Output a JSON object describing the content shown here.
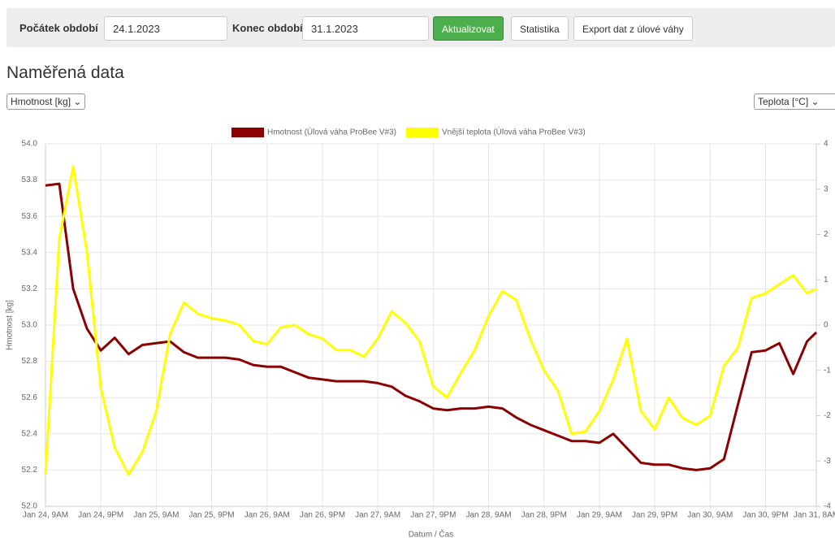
{
  "toolbar": {
    "start_label": "Počátek období",
    "start_value": "24.1.2023",
    "end_label": "Konec období",
    "end_value": "31.1.2023",
    "buttons": [
      "Aktualizovat",
      "Statistika",
      "Export dat z úlové váhy"
    ]
  },
  "heading": "Naměřená data",
  "left_select": "Hmotnost [kg]",
  "right_select": "Teplota [°C]",
  "chart_data": {
    "type": "line",
    "x_label": "Datum / Čas",
    "y_label": "Hmotnost [kg]",
    "x": [
      "Jan 24, 9AM",
      "Jan 24, 12PM",
      "Jan 24, 3PM",
      "Jan 24, 6PM",
      "Jan 24, 9PM",
      "Jan 25, 12AM",
      "Jan 25, 3AM",
      "Jan 25, 6AM",
      "Jan 25, 9AM",
      "Jan 25, 12PM",
      "Jan 25, 3PM",
      "Jan 25, 6PM",
      "Jan 25, 9PM",
      "Jan 26, 12AM",
      "Jan 26, 3AM",
      "Jan 26, 6AM",
      "Jan 26, 9AM",
      "Jan 26, 12PM",
      "Jan 26, 3PM",
      "Jan 26, 6PM",
      "Jan 26, 9PM",
      "Jan 27, 12AM",
      "Jan 27, 3AM",
      "Jan 27, 6AM",
      "Jan 27, 9AM",
      "Jan 27, 12PM",
      "Jan 27, 3PM",
      "Jan 27, 6PM",
      "Jan 27, 9PM",
      "Jan 28, 12AM",
      "Jan 28, 3AM",
      "Jan 28, 6AM",
      "Jan 28, 9AM",
      "Jan 28, 12PM",
      "Jan 28, 3PM",
      "Jan 28, 6PM",
      "Jan 28, 9PM",
      "Jan 29, 12AM",
      "Jan 29, 3AM",
      "Jan 29, 6AM",
      "Jan 29, 9AM",
      "Jan 29, 12PM",
      "Jan 29, 3PM",
      "Jan 29, 6PM",
      "Jan 29, 9PM",
      "Jan 30, 12AM",
      "Jan 30, 3AM",
      "Jan 30, 6AM",
      "Jan 30, 9AM",
      "Jan 30, 12PM",
      "Jan 30, 3PM",
      "Jan 30, 6PM",
      "Jan 30, 9PM",
      "Jan 31, 12AM",
      "Jan 31, 3AM",
      "Jan 31, 6AM",
      "Jan 31, 8AM"
    ],
    "series": [
      {
        "name": "Hmotnost (Úlová váha ProBee V#3)",
        "color": "#8b0000",
        "axis": "y",
        "values": [
          53.77,
          53.78,
          53.2,
          52.98,
          52.86,
          52.93,
          52.84,
          52.89,
          52.9,
          52.91,
          52.85,
          52.82,
          52.82,
          52.82,
          52.81,
          52.78,
          52.77,
          52.77,
          52.74,
          52.71,
          52.7,
          52.69,
          52.69,
          52.69,
          52.68,
          52.66,
          52.61,
          52.58,
          52.54,
          52.53,
          52.54,
          52.54,
          52.55,
          52.54,
          52.49,
          52.45,
          52.42,
          52.39,
          52.36,
          52.36,
          52.35,
          52.4,
          52.32,
          52.24,
          52.23,
          52.23,
          52.21,
          52.2,
          52.21,
          52.26,
          52.56,
          52.85,
          52.86,
          52.9,
          52.73,
          52.91,
          52.96
        ]
      },
      {
        "name": "Vnější teplota (Úlová váha ProBee V#3)",
        "color": "#ffff00",
        "axis": "y2",
        "values": [
          -3.3,
          1.9,
          3.5,
          1.6,
          -1.4,
          -2.7,
          -3.3,
          -2.8,
          -1.9,
          -0.2,
          0.5,
          0.25,
          0.15,
          0.1,
          0.0,
          -0.35,
          -0.42,
          -0.05,
          0.0,
          -0.2,
          -0.3,
          -0.55,
          -0.55,
          -0.7,
          -0.3,
          0.3,
          0.05,
          -0.35,
          -1.35,
          -1.6,
          -1.05,
          -0.55,
          0.2,
          0.75,
          0.55,
          -0.3,
          -1.0,
          -1.45,
          -2.4,
          -2.35,
          -1.9,
          -1.2,
          -0.3,
          -1.9,
          -2.3,
          -1.6,
          -2.05,
          -2.2,
          -2.0,
          -0.9,
          -0.5,
          0.6,
          0.7,
          0.9,
          1.1,
          0.7,
          0.8
        ]
      }
    ],
    "xlim": [
      "Jan 24, 9AM",
      "Jan 31, 8AM"
    ],
    "xticks": [
      "Jan 24, 9AM",
      "Jan 24, 9PM",
      "Jan 25, 9AM",
      "Jan 25, 9PM",
      "Jan 26, 9AM",
      "Jan 26, 9PM",
      "Jan 27, 9AM",
      "Jan 27, 9PM",
      "Jan 28, 9AM",
      "Jan 28, 9PM",
      "Jan 29, 9AM",
      "Jan 29, 9PM",
      "Jan 30, 9AM",
      "Jan 30, 9PM",
      "Jan 31, 8AM"
    ],
    "ylim": [
      52,
      54
    ],
    "yticks": [
      {
        "value": 52,
        "label": "52.0"
      },
      52.2,
      52.4,
      52.6,
      52.8,
      {
        "value": 53,
        "label": "53.0"
      },
      53.2,
      53.4,
      53.6,
      53.8,
      {
        "value": 54,
        "label": "54.0"
      }
    ],
    "y2lim": [
      -4,
      4
    ],
    "y2ticks": [
      -4,
      -3,
      -2,
      -1,
      0,
      1,
      2,
      3,
      4
    ],
    "grid": true,
    "legend": "top"
  }
}
